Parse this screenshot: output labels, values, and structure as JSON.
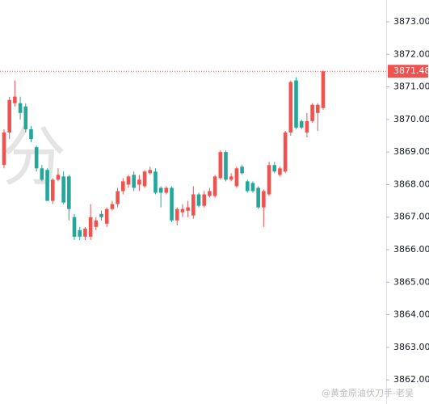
{
  "chart_data": {
    "type": "candlestick",
    "watermark": "分",
    "credit": "@黄金原油伏刀手-老吴",
    "up_color": "#ef5350",
    "down_color": "#26a69a",
    "open": [
      3868.6,
      3869.6,
      3870.5,
      3870.5,
      3870.4,
      3869.7,
      3869.15,
      3868.5,
      3868.45,
      3867.5,
      3868.15,
      3868.25,
      3868.25,
      3867.0,
      3866.6,
      3866.4,
      3866.4,
      3866.7,
      3867.1,
      3866.8,
      3867.25,
      3867.4,
      3867.8,
      3868.0,
      3868.3,
      3868.0,
      3867.95,
      3868.35,
      3868.4,
      3867.9,
      3867.75,
      3867.9,
      3866.9,
      3867.15,
      3867.2,
      3867.05,
      3867.7,
      3867.35,
      3867.65,
      3867.65,
      3868.2,
      3869.0,
      3868.15,
      3867.95,
      3868.55,
      3868.1,
      3868.05,
      3867.9,
      3867.3,
      3867.7,
      3868.6,
      3868.3,
      3868.4,
      3869.6,
      3871.2,
      3869.95,
      3869.6,
      3869.95,
      3870.2,
      3870.35
    ],
    "high": [
      3869.7,
      3870.7,
      3871.2,
      3870.7,
      3870.5,
      3869.8,
      3869.2,
      3868.6,
      3868.5,
      3868.2,
      3868.5,
      3868.4,
      3868.3,
      3867.1,
      3866.7,
      3866.7,
      3867.4,
      3867.0,
      3867.2,
      3867.3,
      3867.5,
      3867.9,
      3868.2,
      3868.3,
      3868.4,
      3868.3,
      3868.45,
      3868.55,
      3868.5,
      3867.95,
      3867.95,
      3867.95,
      3867.3,
      3867.4,
      3867.5,
      3867.95,
      3867.75,
      3867.8,
      3867.9,
      3868.3,
      3869.05,
      3869.05,
      3868.35,
      3868.55,
      3868.6,
      3868.15,
      3868.1,
      3867.95,
      3867.85,
      3868.7,
      3868.7,
      3868.55,
      3869.65,
      3871.2,
      3871.3,
      3870.0,
      3870.2,
      3870.5,
      3870.5,
      3871.5
    ],
    "low": [
      3868.5,
      3869.4,
      3870.4,
      3870.0,
      3869.6,
      3869.3,
      3868.4,
      3868.1,
      3867.5,
      3867.4,
      3868.1,
      3867.4,
      3866.9,
      3866.3,
      3866.3,
      3866.3,
      3866.3,
      3866.6,
      3866.9,
      3866.7,
      3867.2,
      3867.3,
      3867.7,
      3867.9,
      3867.8,
      3867.8,
      3867.9,
      3868.3,
      3867.7,
      3867.3,
      3867.7,
      3866.85,
      3866.75,
      3867.0,
      3867.0,
      3866.95,
      3867.3,
      3867.3,
      3867.6,
      3867.6,
      3868.15,
      3868.1,
      3868.1,
      3867.9,
      3868.3,
      3867.75,
      3867.75,
      3867.25,
      3866.7,
      3867.65,
      3868.35,
      3868.25,
      3868.35,
      3869.5,
      3869.7,
      3869.7,
      3869.45,
      3869.9,
      3869.65,
      3870.3
    ],
    "close": [
      3869.6,
      3870.6,
      3870.7,
      3870.2,
      3869.7,
      3869.4,
      3868.5,
      3868.15,
      3867.5,
      3868.15,
      3868.3,
      3867.45,
      3867.25,
      3866.4,
      3866.4,
      3866.65,
      3867.0,
      3866.9,
      3867.0,
      3867.25,
      3867.4,
      3867.8,
      3868.1,
      3868.25,
      3867.9,
      3868.15,
      3868.4,
      3868.45,
      3867.75,
      3867.75,
      3867.9,
      3866.9,
      3867.25,
      3867.25,
      3867.3,
      3867.7,
      3867.35,
      3867.7,
      3867.8,
      3868.25,
      3869.0,
      3868.15,
      3868.25,
      3868.5,
      3868.35,
      3867.8,
      3867.8,
      3867.3,
      3867.8,
      3868.6,
      3868.4,
      3868.5,
      3869.6,
      3871.15,
      3869.75,
      3869.75,
      3869.95,
      3870.45,
      3870.45,
      3871.48
    ],
    "last_price": 3871.48,
    "ylim": [
      3861.26,
      3873.67
    ],
    "yticks": [
      {
        "value": 3862,
        "label": "3862.00"
      },
      {
        "value": 3863,
        "label": "3863.00"
      },
      {
        "value": 3864,
        "label": "3864.00"
      },
      {
        "value": 3865,
        "label": "3865.00"
      },
      {
        "value": 3866,
        "label": "3866.00"
      },
      {
        "value": 3867,
        "label": "3867.00"
      },
      {
        "value": 3868,
        "label": "3868.00"
      },
      {
        "value": 3869,
        "label": "3869.00"
      },
      {
        "value": 3870,
        "label": "3870.00"
      },
      {
        "value": 3871,
        "label": "3871.00"
      },
      {
        "value": 3872,
        "label": "3872.00"
      },
      {
        "value": 3873,
        "label": "3873.00"
      }
    ]
  }
}
